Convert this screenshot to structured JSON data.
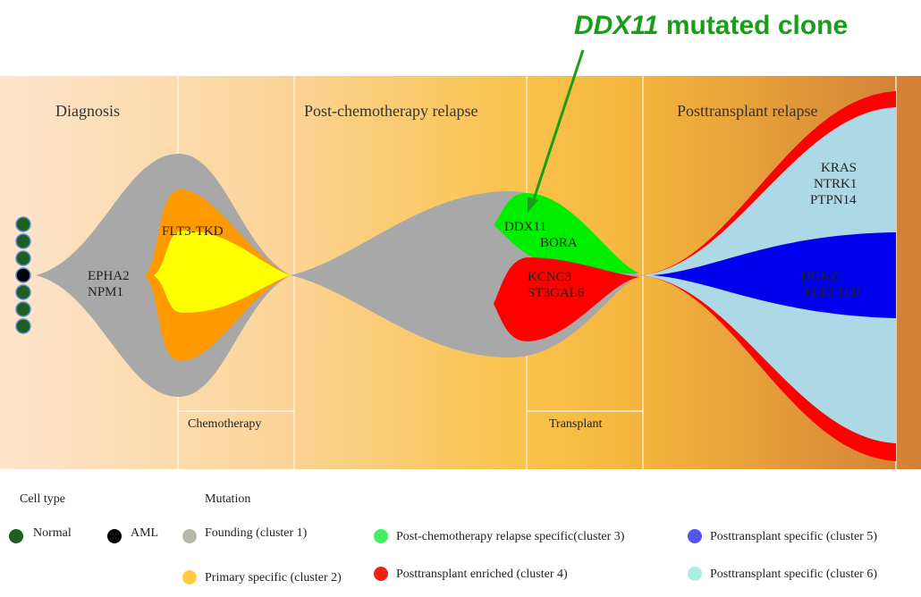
{
  "callout": {
    "gene": "DDX11",
    "text": " mutated clone",
    "color": "#1a9e1a"
  },
  "phases": [
    "Diagnosis",
    "Post-chemotherapy relapse",
    "Posttransplant relapse"
  ],
  "treatments": [
    "Chemotherapy",
    "Transplant"
  ],
  "clone_labels": {
    "founding": [
      "EPHA2",
      "NPM1"
    ],
    "primary": [
      "FLT3-TKD"
    ],
    "post_chemo": [
      "DDX11",
      "BORA"
    ],
    "enriched": [
      "KCNC3",
      "ST3GAL6"
    ],
    "specific6": [
      "KRAS",
      "NTRK1",
      "PTPN14"
    ],
    "specific5": [
      "DGKZ",
      "FLT3-ITD"
    ]
  },
  "legend": {
    "cell_type_title": "Cell type",
    "mutation_title": "Mutation",
    "items": [
      {
        "label": "Normal",
        "color": "#1e5e1e"
      },
      {
        "label": "AML",
        "color": "#000000"
      },
      {
        "label": "Founding (cluster 1)",
        "color": "#b8b8a8"
      },
      {
        "label": "Post-chemotherapy relapse specific(cluster 3)",
        "color": "#44ee66"
      },
      {
        "label": "Posttransplant specific (cluster 5)",
        "color": "#5555ee"
      },
      {
        "label": "Primary specific (cluster 2)",
        "color": "#ffcc44"
      },
      {
        "label": "Posttransplant enriched (cluster 4)",
        "color": "#ee2211"
      },
      {
        "label": "Posttransplant specific (cluster 6)",
        "color": "#aaf0e0"
      }
    ]
  },
  "colors": {
    "founding": "#a8a8a8",
    "primary": "#ff9900",
    "primary_inner": "#ffff00",
    "post_chemo": "#00ee00",
    "enriched": "#ff0000",
    "specific6": "#add8e6",
    "specific5": "#0000ee"
  }
}
